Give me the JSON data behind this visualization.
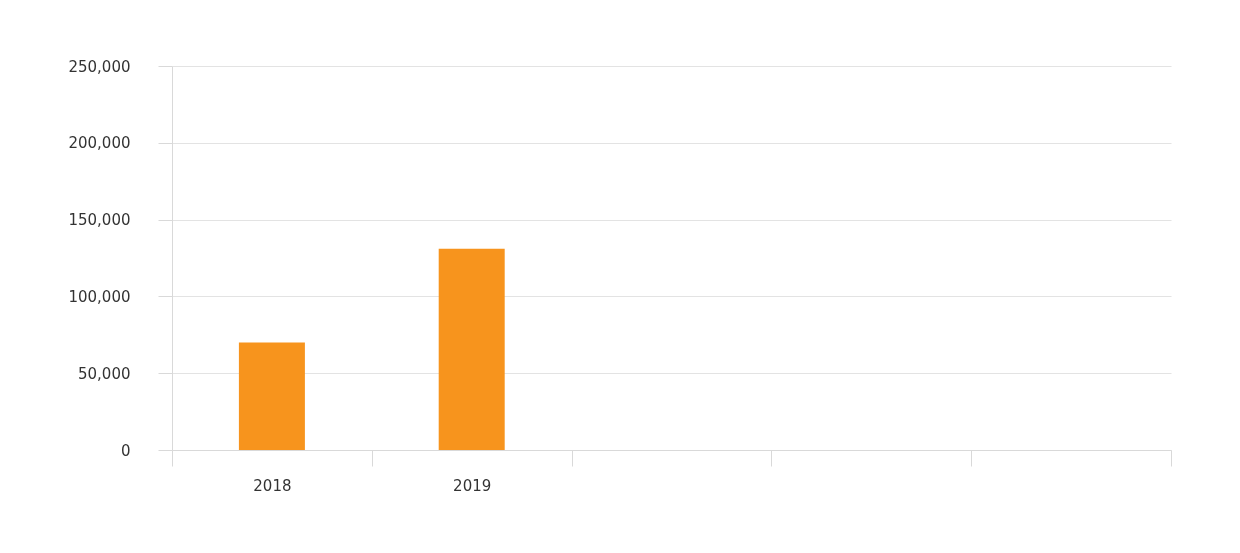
{
  "chart_data": {
    "type": "bar",
    "categories": [
      "2018",
      "2019",
      null,
      null,
      null
    ],
    "values": [
      70000,
      131000,
      null,
      null,
      null
    ],
    "color": "#f7941d",
    "ylim": [
      0,
      250000
    ],
    "yticks": [
      0,
      {
        "value": 50000,
        "label": "50,000"
      },
      {
        "value": 100000,
        "label": "100,000"
      },
      {
        "value": 150000,
        "label": "150,000"
      },
      {
        "value": 200000,
        "label": "200,000"
      },
      {
        "value": 250000,
        "label": "250,000"
      }
    ],
    "grid": "y"
  }
}
